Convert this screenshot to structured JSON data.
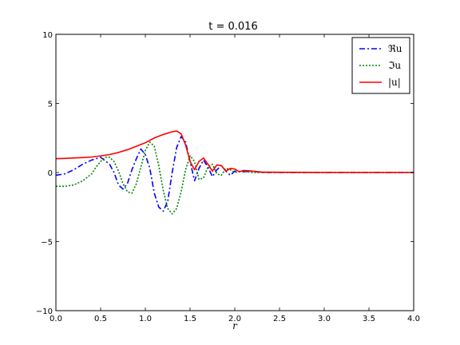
{
  "chart_data": {
    "type": "line",
    "title": "t = 0.016",
    "xlabel": "r",
    "ylabel": "",
    "xlim": [
      0.0,
      4.0
    ],
    "ylim": [
      -10,
      10
    ],
    "x_ticks": [
      0.0,
      0.5,
      1.0,
      1.5,
      2.0,
      2.5,
      3.0,
      3.5,
      4.0
    ],
    "x_tick_labels": [
      "0.0",
      "0.5",
      "1.0",
      "1.5",
      "2.0",
      "2.5",
      "3.0",
      "3.5",
      "4.0"
    ],
    "y_ticks": [
      -10,
      -5,
      0,
      5,
      10
    ],
    "y_tick_labels": [
      "−10",
      "−5",
      "0",
      "5",
      "10"
    ],
    "grid": false,
    "legend_position": "top-right",
    "series": [
      {
        "name": "ℜu",
        "color": "#0000ff",
        "style": "dashdot",
        "x": [
          0.0,
          0.1,
          0.2,
          0.3,
          0.4,
          0.5,
          0.6,
          0.65,
          0.7,
          0.75,
          0.8,
          0.85,
          0.9,
          0.95,
          1.0,
          1.05,
          1.1,
          1.15,
          1.2,
          1.25,
          1.3,
          1.35,
          1.4,
          1.45,
          1.5,
          1.55,
          1.6,
          1.65,
          1.7,
          1.75,
          1.8,
          1.85,
          1.9,
          1.95,
          2.0,
          2.1,
          2.2,
          2.3,
          2.5,
          3.0,
          3.5,
          4.0
        ],
        "y": [
          -0.2,
          -0.1,
          0.2,
          0.6,
          0.9,
          1.1,
          0.6,
          0.0,
          -0.9,
          -1.2,
          -0.8,
          0.2,
          1.0,
          1.7,
          1.3,
          0.3,
          -1.5,
          -2.5,
          -2.8,
          -2.1,
          0.0,
          1.8,
          2.6,
          2.2,
          0.8,
          -0.6,
          0.3,
          0.9,
          0.4,
          -0.3,
          0.2,
          0.5,
          0.1,
          -0.2,
          0.1,
          0.05,
          0.1,
          0.0,
          0.0,
          0.0,
          0.0,
          0.0
        ]
      },
      {
        "name": "ℑu",
        "color": "#008000",
        "style": "dotted",
        "x": [
          0.0,
          0.1,
          0.2,
          0.3,
          0.4,
          0.45,
          0.5,
          0.55,
          0.6,
          0.65,
          0.7,
          0.75,
          0.8,
          0.85,
          0.9,
          0.95,
          1.0,
          1.05,
          1.1,
          1.15,
          1.2,
          1.25,
          1.3,
          1.35,
          1.4,
          1.45,
          1.5,
          1.55,
          1.6,
          1.65,
          1.7,
          1.75,
          1.8,
          1.85,
          1.9,
          1.95,
          2.0,
          2.1,
          2.2,
          2.5,
          3.0,
          3.5,
          4.0
        ],
        "y": [
          -1.0,
          -1.0,
          -0.9,
          -0.6,
          -0.1,
          0.4,
          0.8,
          1.1,
          1.1,
          0.8,
          0.1,
          -0.8,
          -1.4,
          -1.5,
          -0.8,
          0.4,
          1.6,
          2.2,
          1.9,
          0.5,
          -1.3,
          -2.6,
          -3.0,
          -2.6,
          -1.4,
          0.2,
          1.2,
          0.8,
          -0.5,
          -0.4,
          0.4,
          0.6,
          -0.1,
          -0.2,
          0.3,
          0.2,
          0.0,
          0.1,
          0.0,
          0.0,
          0.0,
          0.0,
          0.0
        ]
      },
      {
        "name": "|u|",
        "color": "#ff0000",
        "style": "solid",
        "x": [
          0.0,
          0.1,
          0.2,
          0.3,
          0.4,
          0.5,
          0.6,
          0.7,
          0.8,
          0.9,
          1.0,
          1.1,
          1.2,
          1.3,
          1.35,
          1.4,
          1.45,
          1.5,
          1.55,
          1.6,
          1.65,
          1.7,
          1.75,
          1.8,
          1.85,
          1.9,
          1.95,
          2.0,
          2.05,
          2.1,
          2.2,
          2.3,
          2.5,
          3.0,
          3.5,
          4.0
        ],
        "y": [
          1.0,
          1.02,
          1.05,
          1.08,
          1.12,
          1.2,
          1.3,
          1.45,
          1.65,
          1.9,
          2.15,
          2.5,
          2.75,
          2.95,
          3.0,
          2.8,
          2.0,
          0.8,
          0.2,
          0.8,
          1.05,
          0.6,
          0.1,
          0.55,
          0.5,
          0.1,
          0.3,
          0.25,
          0.05,
          0.15,
          0.1,
          0.03,
          0.02,
          0.0,
          0.0,
          0.0
        ]
      }
    ]
  }
}
